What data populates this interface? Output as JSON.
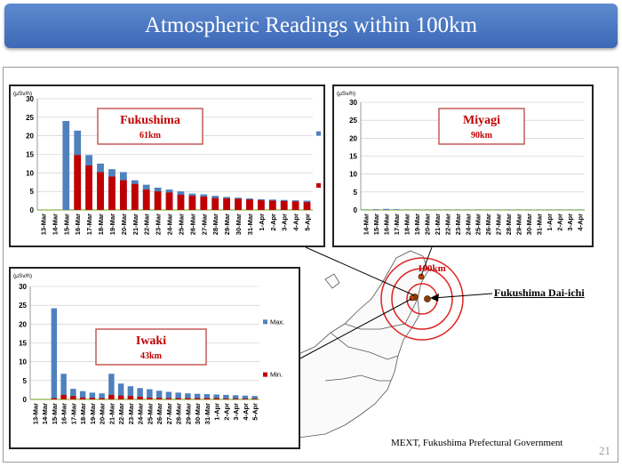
{
  "page": {
    "title": "Atmospheric Readings within 100km",
    "source": "MEXT, Fukushima Prefectural Government",
    "page_number": "21"
  },
  "map": {
    "distance_label": "100km",
    "plant_label": "Fukushima Dai-ichi"
  },
  "colors": {
    "max": "#4f81bd",
    "min": "#c00000",
    "grid": "#c8c8c8",
    "label_box": "#c0504d"
  },
  "chart_data": [
    {
      "type": "bar",
      "unit": "(μSv/h)",
      "label_title": "Fukushima",
      "label_sub": "61km",
      "ylim": [
        0,
        30
      ],
      "yticks": [
        0,
        5,
        10,
        15,
        20,
        25,
        30
      ],
      "legend": "right",
      "categories": [
        "13-Mar",
        "14-Mar",
        "15-Mar",
        "16-Mar",
        "17-Mar",
        "18-Mar",
        "19-Mar",
        "20-Mar",
        "21-Mar",
        "22-Mar",
        "23-Mar",
        "24-Mar",
        "25-Mar",
        "26-Mar",
        "27-Mar",
        "28-Mar",
        "29-Mar",
        "30-Mar",
        "31-Mar",
        "1-Apr",
        "2-Apr",
        "3-Apr",
        "4-Apr",
        "5-Apr"
      ],
      "series": [
        {
          "name": "Max.",
          "values": [
            0,
            0,
            24,
            21.4,
            14.8,
            12.5,
            11,
            10.2,
            8,
            6.8,
            6,
            5.5,
            5,
            4.4,
            4.2,
            3.8,
            3.5,
            3.3,
            3.1,
            2.9,
            2.8,
            2.7,
            2.6,
            2.5
          ]
        },
        {
          "name": "Min.",
          "values": [
            0,
            0,
            0,
            14.8,
            12,
            10.2,
            9,
            8,
            7,
            5.5,
            5,
            4.7,
            4.1,
            3.8,
            3.6,
            3.2,
            3.1,
            3,
            2.8,
            2.6,
            2.5,
            2.4,
            2.3,
            2.1
          ]
        }
      ]
    },
    {
      "type": "bar",
      "unit": "(μSv/h)",
      "label_title": "Miyagi",
      "label_sub": "90km",
      "ylim": [
        0,
        30
      ],
      "yticks": [
        0,
        5,
        10,
        15,
        20,
        25,
        30
      ],
      "categories": [
        "14-Mar",
        "15-Mar",
        "16-Mar",
        "17-Mar",
        "18-Mar",
        "19-Mar",
        "20-Mar",
        "21-Mar",
        "22-Mar",
        "23-Mar",
        "24-Mar",
        "25-Mar",
        "26-Mar",
        "27-Mar",
        "28-Mar",
        "29-Mar",
        "30-Mar",
        "31-Mar",
        "1-Apr",
        "2-Apr",
        "3-Apr",
        "4-Apr"
      ],
      "series": [
        {
          "values": [
            0.1,
            0.2,
            0.3,
            0.2,
            0.1,
            0.1,
            0.1,
            0.1,
            0.1,
            0.1,
            0.1,
            0.1,
            0.1,
            0.1,
            0.1,
            0.1,
            0.1,
            0.1,
            0.1,
            0.1,
            0.1,
            0.1
          ]
        }
      ]
    },
    {
      "type": "bar",
      "unit": "(μSv/h)",
      "label_title": "Iwaki",
      "label_sub": "43km",
      "ylim": [
        0,
        30
      ],
      "yticks": [
        0,
        5,
        10,
        15,
        20,
        25,
        30
      ],
      "legend": "right",
      "categories": [
        "13-Mar",
        "14-Mar",
        "15-Mar",
        "16-Mar",
        "17-Mar",
        "18-Mar",
        "19-Mar",
        "20-Mar",
        "21-Mar",
        "22-Mar",
        "23-Mar",
        "24-Mar",
        "25-Mar",
        "26-Mar",
        "27-Mar",
        "28-Mar",
        "29-Mar",
        "30-Mar",
        "31-Mar",
        "1-Apr",
        "2-Apr",
        "3-Apr",
        "4-Apr",
        "5-Apr"
      ],
      "series": [
        {
          "name": "Max.",
          "values": [
            0,
            0,
            24.2,
            6.8,
            2.8,
            2.2,
            1.8,
            1.6,
            6.8,
            4.2,
            3.5,
            3,
            2.7,
            2.3,
            2,
            1.8,
            1.6,
            1.5,
            1.4,
            1.3,
            1.2,
            1.1,
            1,
            0.9
          ]
        },
        {
          "name": "Min.",
          "values": [
            0,
            0,
            0.3,
            1.2,
            0.9,
            0.5,
            0.4,
            0.3,
            1.2,
            1,
            0.9,
            0.7,
            0.5,
            0.4,
            0.3,
            0.3,
            0.3,
            0.3,
            0.3,
            0.3,
            0.2,
            0.2,
            0.2,
            0.2
          ]
        }
      ]
    }
  ]
}
